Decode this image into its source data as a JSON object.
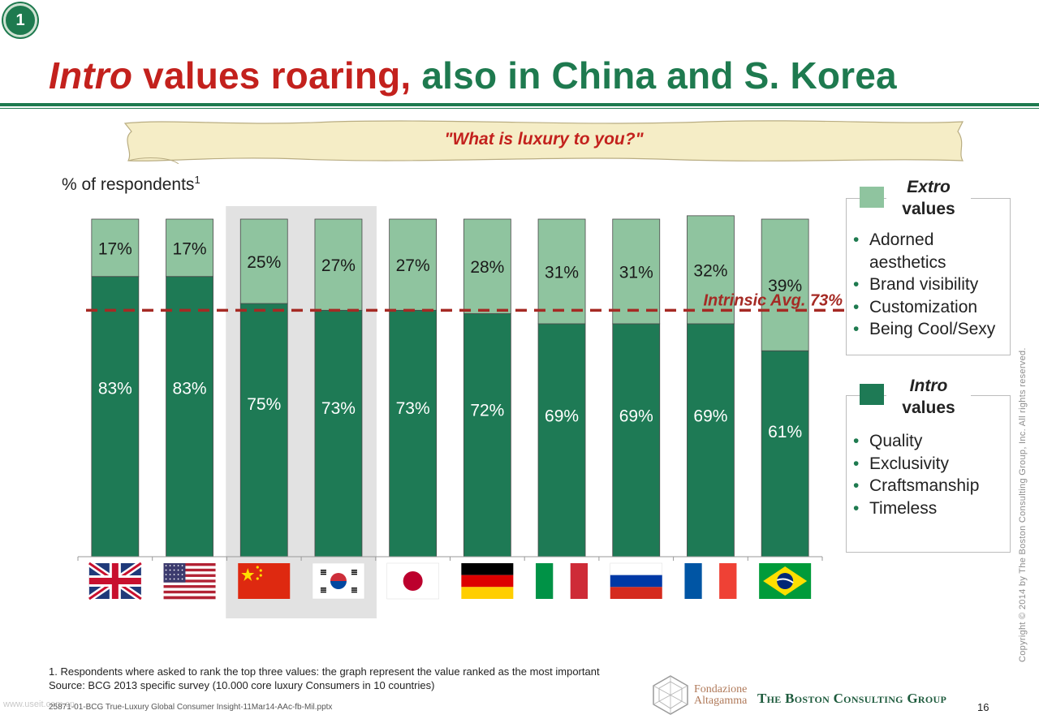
{
  "badge": "1",
  "title": {
    "part1": "Intro",
    "part2": " values roaring,",
    "part3": " also in China and S. Korea"
  },
  "question": "\"What is luxury to you?\"",
  "ylabel": "% of respondents",
  "ylabel_sup": "1",
  "colors": {
    "intro": "#1e7a55",
    "extro": "#8fc49f",
    "avg_line": "#a52a24",
    "highlight": "#e2e2e2",
    "title_red": "#c3211d",
    "title_green": "#1e7a4f"
  },
  "chart_data": {
    "type": "bar",
    "stacked": true,
    "categories": [
      "United Kingdom",
      "United States",
      "China",
      "South Korea",
      "Japan",
      "Germany",
      "Italy",
      "Russia",
      "France",
      "Brazil"
    ],
    "series": [
      {
        "name": "Intro values",
        "values": [
          83,
          83,
          75,
          73,
          73,
          72,
          69,
          69,
          69,
          61
        ],
        "labels": [
          "83%",
          "83%",
          "75%",
          "73%",
          "73%",
          "72%",
          "69%",
          "69%",
          "69%",
          "61%"
        ]
      },
      {
        "name": "Extro values",
        "values": [
          17,
          17,
          25,
          27,
          27,
          28,
          31,
          31,
          32,
          39
        ],
        "labels": [
          "17%",
          "17%",
          "25%",
          "27%",
          "27%",
          "28%",
          "31%",
          "31%",
          "32%",
          "39%"
        ]
      }
    ],
    "ylim": [
      0,
      100
    ],
    "highlighted": [
      "China",
      "South Korea"
    ],
    "average_line": {
      "value": 73,
      "label": "Intrinsic Avg. 73%"
    }
  },
  "legend": {
    "extro": {
      "title_italic": "Extro",
      "title_rest": "values",
      "items": [
        "Adorned aesthetics",
        "Brand visibility",
        "Customization",
        "Being Cool/Sexy"
      ]
    },
    "intro": {
      "title_italic": "Intro",
      "title_rest": "values",
      "items": [
        "Quality",
        "Exclusivity",
        "Craftsmanship",
        "Timeless"
      ]
    }
  },
  "copyright": "Copyright © 2014 by The Boston Consulting Group, Inc. All rights reserved.",
  "footnote": "1. Respondents where asked  to rank the top three values: the graph represent the value ranked as the most important",
  "source": "Source: BCG 2013 specific survey (10.000 core luxury Consumers in 10 countries)",
  "fileref": "25871-01-BCG True-Luxury Global Consumer Insight-11Mar14-AAc-fb-Mil.pptx",
  "watermark": "www.useit.com.cn",
  "page": "16",
  "logos": {
    "fondazione_line1": "Fondazione",
    "fondazione_line2": "Altagamma",
    "bcg": "The Boston Consulting Group"
  }
}
